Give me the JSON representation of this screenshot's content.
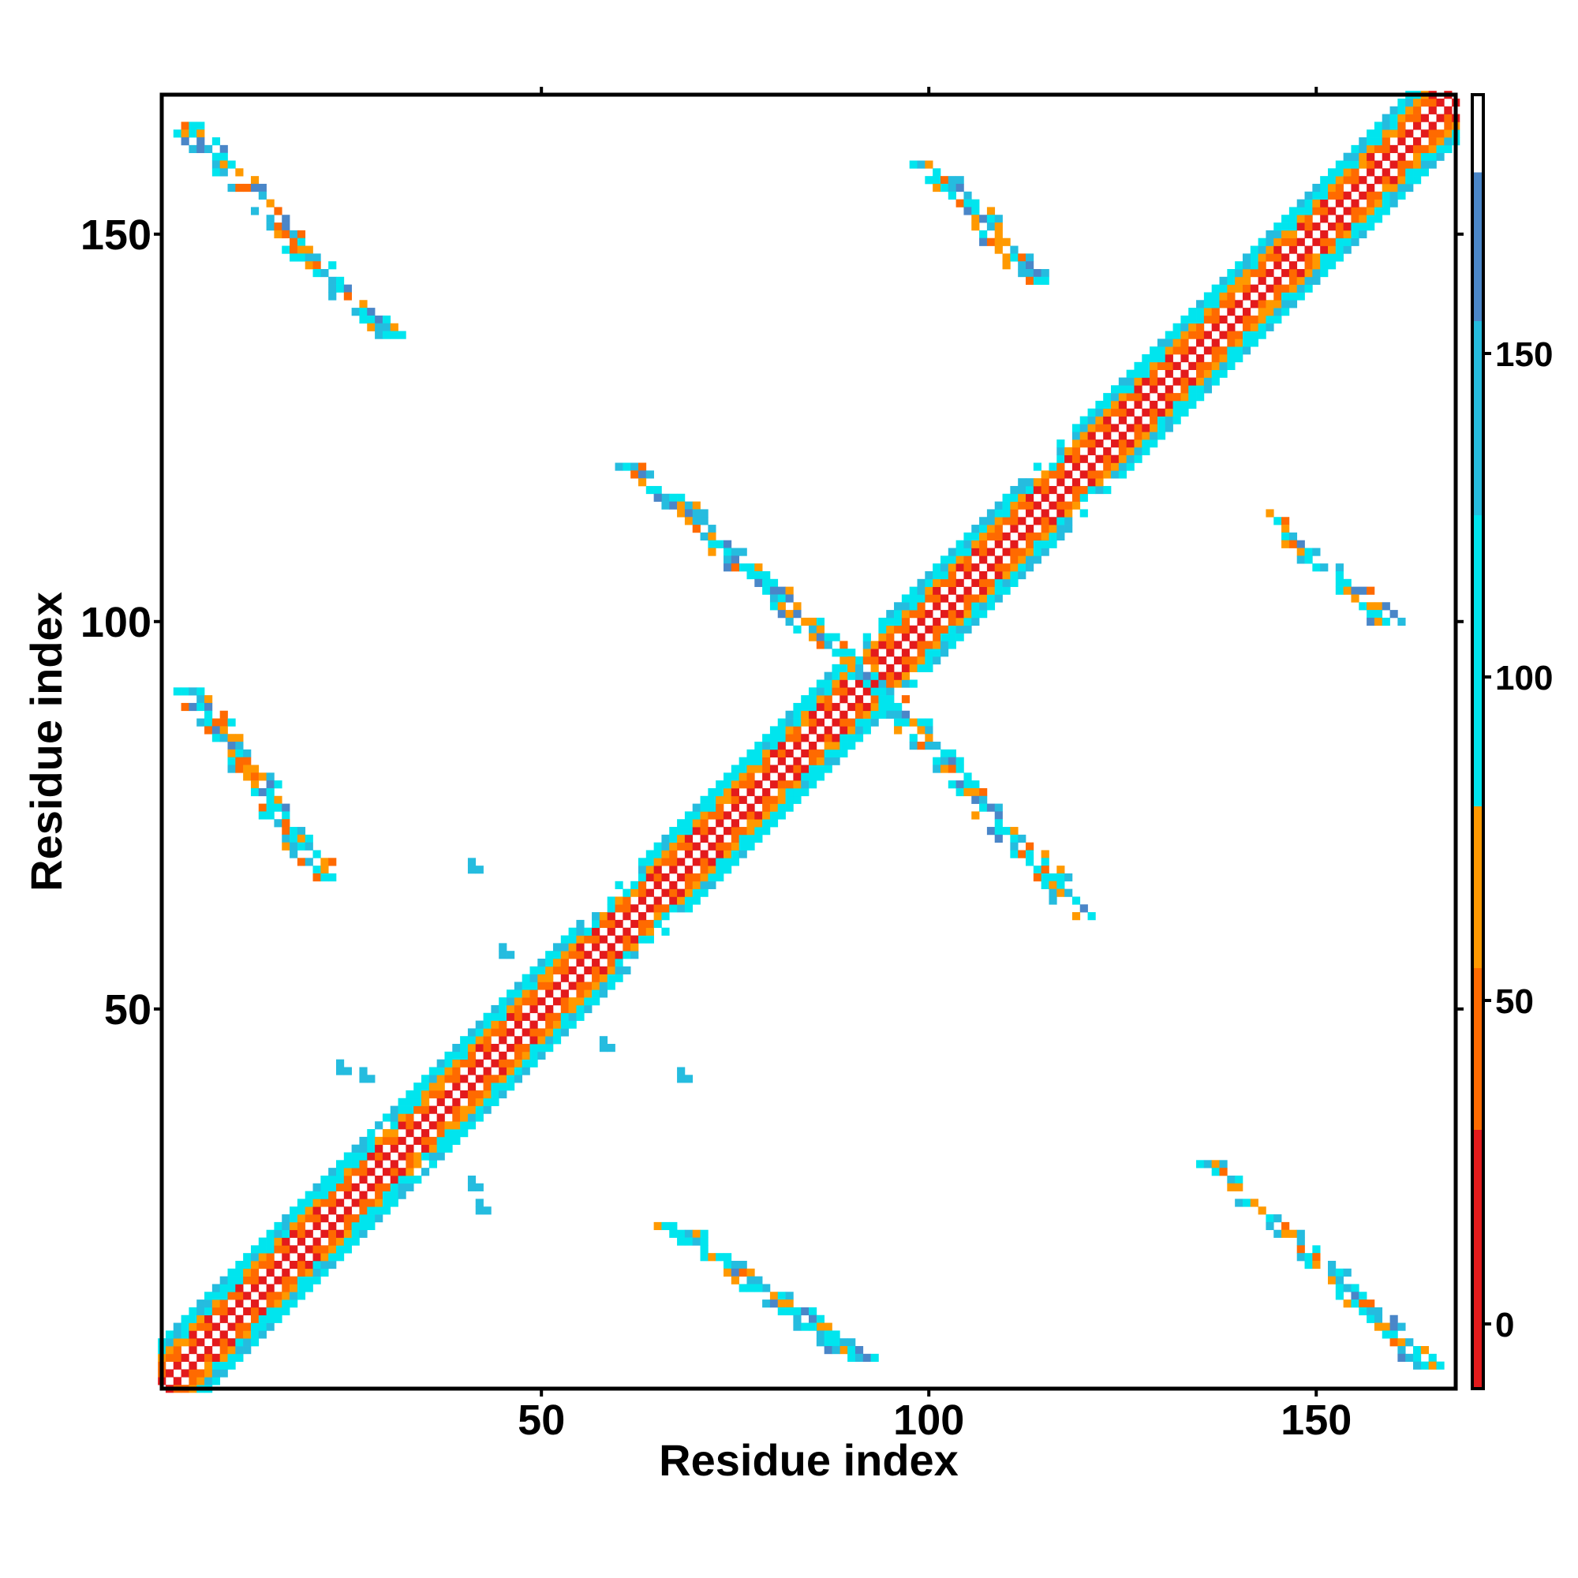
{
  "chart_data": {
    "type": "heatmap",
    "title": "",
    "xlabel": "Residue index",
    "ylabel": "Residue index",
    "xlim": [
      1,
      168
    ],
    "ylim": [
      1,
      168
    ],
    "x_ticks": [
      50,
      100,
      150
    ],
    "y_ticks": [
      50,
      100,
      150
    ],
    "x_tick_labels": [
      "50",
      "100",
      "150"
    ],
    "y_tick_labels": [
      "50",
      "100",
      "150"
    ],
    "grid": false,
    "legend": "colorbar-right",
    "colorbar": {
      "range": [
        -10,
        190
      ],
      "ticks": [
        0,
        50,
        100,
        150
      ],
      "tick_labels": [
        "0",
        "50",
        "100",
        "150"
      ],
      "bands": [
        {
          "from": -10,
          "to": 30,
          "color": "#e31a1c"
        },
        {
          "from": 30,
          "to": 55,
          "color": "#ff6a00"
        },
        {
          "from": 55,
          "to": 80,
          "color": "#ff9900"
        },
        {
          "from": 80,
          "to": 125,
          "color": "#00e5ee"
        },
        {
          "from": 125,
          "to": 155,
          "color": "#25bcdf"
        },
        {
          "from": 155,
          "to": 178,
          "color": "#4a86c8"
        },
        {
          "from": 178,
          "to": 190,
          "color": "#ffffff"
        }
      ]
    },
    "n_residues": 168,
    "diagonal_band": {
      "width_residues": 6,
      "sequence_gaps": [
        [
          28,
          30
        ],
        [
          56,
          62
        ],
        [
          90,
          94
        ],
        [
          112,
          118
        ]
      ]
    },
    "contact_segments": [
      {
        "region": "top-left antiparallel sheet",
        "from": [
          4,
          164
        ],
        "to": [
          30,
          137
        ]
      },
      {
        "region": "mid-left antiparallel",
        "from": [
          5,
          91
        ],
        "to": [
          22,
          67
        ]
      },
      {
        "region": "central crossing strand",
        "from": [
          62,
          120
        ],
        "to": [
          92,
          93
        ]
      },
      {
        "region": "central crossing strand (mirror)",
        "from": [
          93,
          92
        ],
        "to": [
          120,
          62
        ]
      },
      {
        "region": "bottom-right (mirror of top-left)",
        "from": [
          137,
          30
        ],
        "to": [
          164,
          4
        ]
      },
      {
        "region": "bottom-center (mirror of mid-left)",
        "from": [
          67,
          22
        ],
        "to": [
          91,
          5
        ]
      },
      {
        "region": "top-right small",
        "from": [
          100,
          159
        ],
        "to": [
          114,
          144
        ]
      },
      {
        "region": "right small",
        "from": [
          144,
          114
        ],
        "to": [
          159,
          100
        ]
      }
    ],
    "isolated_contacts": [
      [
        41,
        68
      ],
      [
        45,
        57
      ],
      [
        58,
        45
      ],
      [
        24,
        42
      ],
      [
        27,
        41
      ],
      [
        68,
        41
      ],
      [
        41,
        27
      ],
      [
        42,
        24
      ]
    ]
  }
}
